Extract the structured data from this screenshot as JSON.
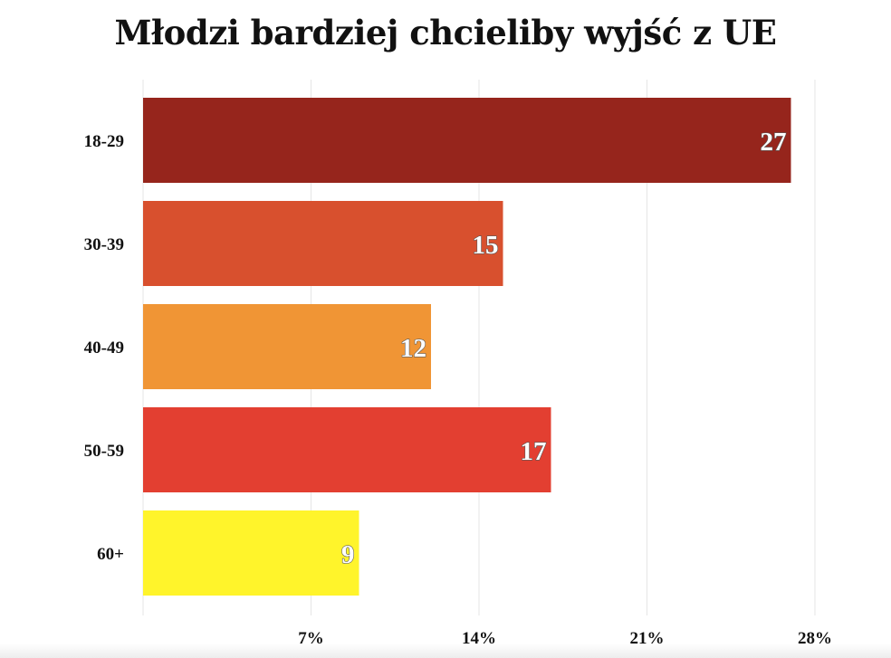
{
  "chart_data": {
    "type": "bar",
    "orientation": "horizontal",
    "title": "Młodzi bardziej chcieliby wyjść z UE",
    "categories": [
      "18-29",
      "30-39",
      "40-49",
      "50-59",
      "60+"
    ],
    "values": [
      27,
      15,
      12,
      17,
      9
    ],
    "value_labels": [
      "27",
      "15",
      "12",
      "17",
      "9"
    ],
    "bar_colors": [
      "#96251c",
      "#d8502e",
      "#f09535",
      "#e33f31",
      "#fff42b"
    ],
    "x_ticks": [
      7,
      14,
      21,
      28
    ],
    "x_tick_labels": [
      "7%",
      "14%",
      "21%",
      "28%"
    ],
    "xlim": [
      0,
      28
    ],
    "grid": true,
    "gridline_color": "#e6e6e6",
    "legend": "none"
  }
}
